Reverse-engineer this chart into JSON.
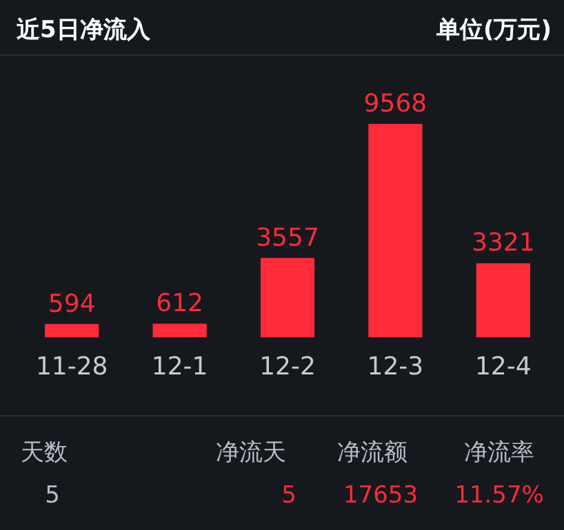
{
  "chart_data": {
    "type": "bar",
    "title": "近5日净流入",
    "categories": [
      "11-28",
      "12-1",
      "12-2",
      "12-3",
      "12-4"
    ],
    "values": [
      594,
      612,
      3557,
      9568,
      3321
    ],
    "color": "#ff2b38",
    "data_labels": true,
    "grid": false,
    "annotations": [
      "单位(万元)",
      "天数",
      "净流天",
      "净流额",
      "净流率",
      "5",
      "5",
      "17653",
      "11.57%"
    ]
  }
}
